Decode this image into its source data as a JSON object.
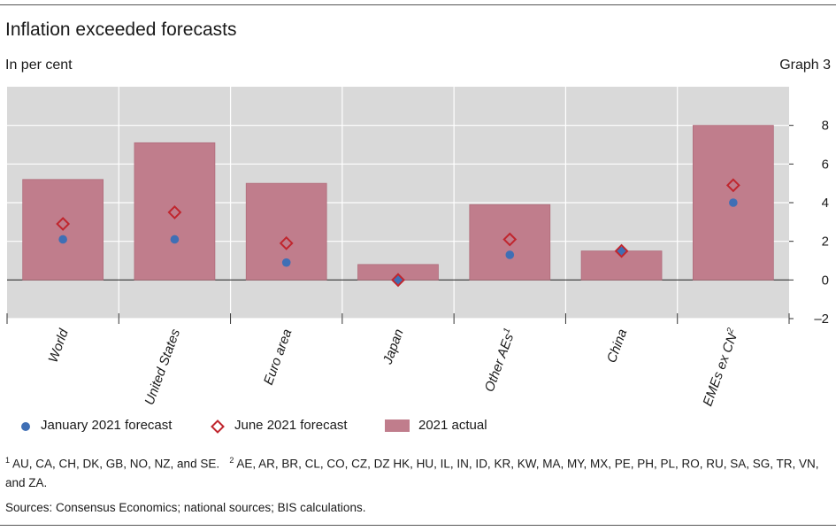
{
  "header": {
    "title": "Inflation exceeded forecasts",
    "unit": "In per cent",
    "graph_number": "Graph 3"
  },
  "legend": {
    "january": "January 2021 forecast",
    "june": "June 2021 forecast",
    "actual": "2021 actual"
  },
  "footnotes": {
    "note1_marker": "1",
    "note1_text": "AU, CA, CH, DK, GB, NO, NZ, and SE.",
    "note2_marker": "2",
    "note2_text": "AE, AR, BR, CL, CO, CZ, DZ HK, HU, IL, IN, ID, KR, KW, MA, MY, MX, PE, PH, PL, RO, RU, SA, SG, TR, VN, and ZA."
  },
  "sources": "Sources: Consensus Economics; national sources; BIS calculations.",
  "colors": {
    "plot_bg": "#d9d9d9",
    "bar": "#c07d8c",
    "bar_edge": "#b06c7b",
    "january": "#3f6fb5",
    "june": "#c0262e",
    "grid": "#ffffff"
  },
  "chart_data": {
    "type": "bar",
    "title": "Inflation exceeded forecasts",
    "ylabel": "In per cent",
    "ylim": [
      -2,
      10
    ],
    "yticks": [
      -2,
      0,
      2,
      4,
      6,
      8
    ],
    "y_axis_side": "right",
    "categories": [
      "World",
      "United States",
      "Euro area",
      "Japan",
      "Other AEs",
      "China",
      "EMEs ex CN"
    ],
    "category_superscripts": [
      "",
      "",
      "",
      "",
      "1",
      "",
      "2"
    ],
    "series": [
      {
        "name": "2021 actual",
        "kind": "bar",
        "values": [
          5.2,
          7.1,
          5.0,
          0.8,
          3.9,
          1.5,
          8.0
        ]
      },
      {
        "name": "January 2021 forecast",
        "kind": "dot",
        "values": [
          2.1,
          2.1,
          0.9,
          0.0,
          1.3,
          1.5,
          4.0
        ]
      },
      {
        "name": "June 2021 forecast",
        "kind": "diamond",
        "values": [
          2.9,
          3.5,
          1.9,
          0.0,
          2.1,
          1.5,
          4.9
        ]
      }
    ],
    "legend_position": "bottom"
  }
}
